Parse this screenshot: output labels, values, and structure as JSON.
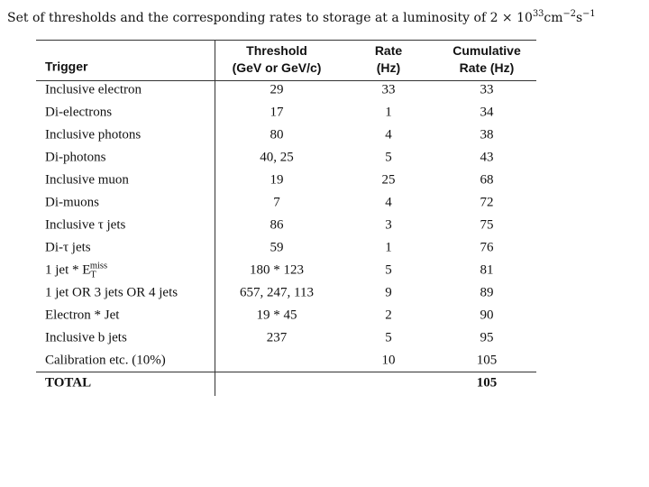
{
  "title": {
    "parts": [
      {
        "text": "Set of thresholds and the corresponding rates to storage at a luminosity of 2 × 10"
      },
      {
        "sup": "33"
      },
      {
        "text": "cm"
      },
      {
        "sup": "−2"
      },
      {
        "text": "s"
      },
      {
        "sup": "−1"
      }
    ]
  },
  "table": {
    "header": [
      [
        "Trigger"
      ],
      [
        "Threshold",
        "(GeV or GeV/c)"
      ],
      [
        "Rate",
        "(Hz)"
      ],
      [
        "Cumulative",
        "Rate (Hz)"
      ]
    ],
    "rows": [
      [
        "Inclusive electron",
        29,
        33,
        33
      ],
      [
        "Di-electrons",
        17,
        1,
        34
      ],
      [
        "Inclusive photons",
        80,
        4,
        38
      ],
      [
        "Di-photons",
        "40, 25",
        5,
        43
      ],
      [
        "Inclusive muon",
        19,
        25,
        68
      ],
      [
        "Di-muons",
        7,
        4,
        72
      ],
      [
        "Inclusive τ jets",
        86,
        3,
        75
      ],
      [
        "Di-τ jets",
        59,
        1,
        76
      ],
      [
        {
          "parts": [
            {
              "text": "1 jet * E"
            },
            {
              "sub": "T"
            },
            {
              "sup": "miss"
            }
          ]
        },
        "180 * 123",
        5,
        81
      ],
      [
        "1 jet OR 3 jets OR 4 jets",
        "657, 247, 113",
        9,
        89
      ],
      [
        "Electron * Jet",
        "19 * 45",
        2,
        90
      ],
      [
        "Inclusive b jets",
        237,
        5,
        95
      ],
      [
        "Calibration etc. (10%)",
        null,
        10,
        105
      ]
    ],
    "total": [
      "TOTAL",
      null,
      null,
      105
    ]
  }
}
